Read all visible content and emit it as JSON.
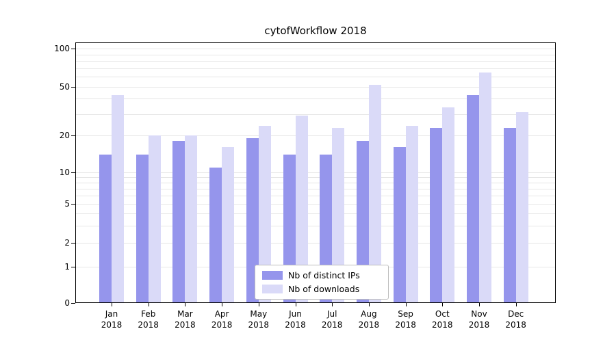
{
  "chart_data": {
    "type": "bar",
    "title": "cytofWorkflow 2018",
    "categories": [
      "Jan 2018",
      "Feb 2018",
      "Mar 2018",
      "Apr 2018",
      "May 2018",
      "Jun 2018",
      "Jul 2018",
      "Aug 2018",
      "Sep 2018",
      "Oct 2018",
      "Nov 2018",
      "Dec 2018"
    ],
    "series": [
      {
        "name": "Nb of distinct IPs",
        "color": "#9595ec",
        "values": [
          14,
          14,
          18,
          11,
          19,
          14,
          14,
          18,
          16,
          23,
          43,
          23
        ]
      },
      {
        "name": "Nb of downloads",
        "color": "#dadaf8",
        "values": [
          43,
          20,
          20,
          16,
          24,
          29,
          23,
          52,
          24,
          34,
          65,
          31
        ]
      }
    ],
    "yticks": [
      0,
      1,
      2,
      5,
      10,
      20,
      50,
      100
    ],
    "ylim": [
      0,
      100
    ],
    "scale": "logarithmic above 1, linear segment from 0 to 1",
    "grid": "horizontal log minor gridlines",
    "gridline_values": [
      1,
      2,
      3,
      4,
      5,
      6,
      7,
      8,
      9,
      10,
      20,
      30,
      40,
      50,
      60,
      70,
      80,
      90,
      100
    ],
    "legend_position": "bottom-center inside plot",
    "colors": {
      "grid": "#e6e6e6",
      "axis": "#000000",
      "background": "#ffffff"
    }
  }
}
